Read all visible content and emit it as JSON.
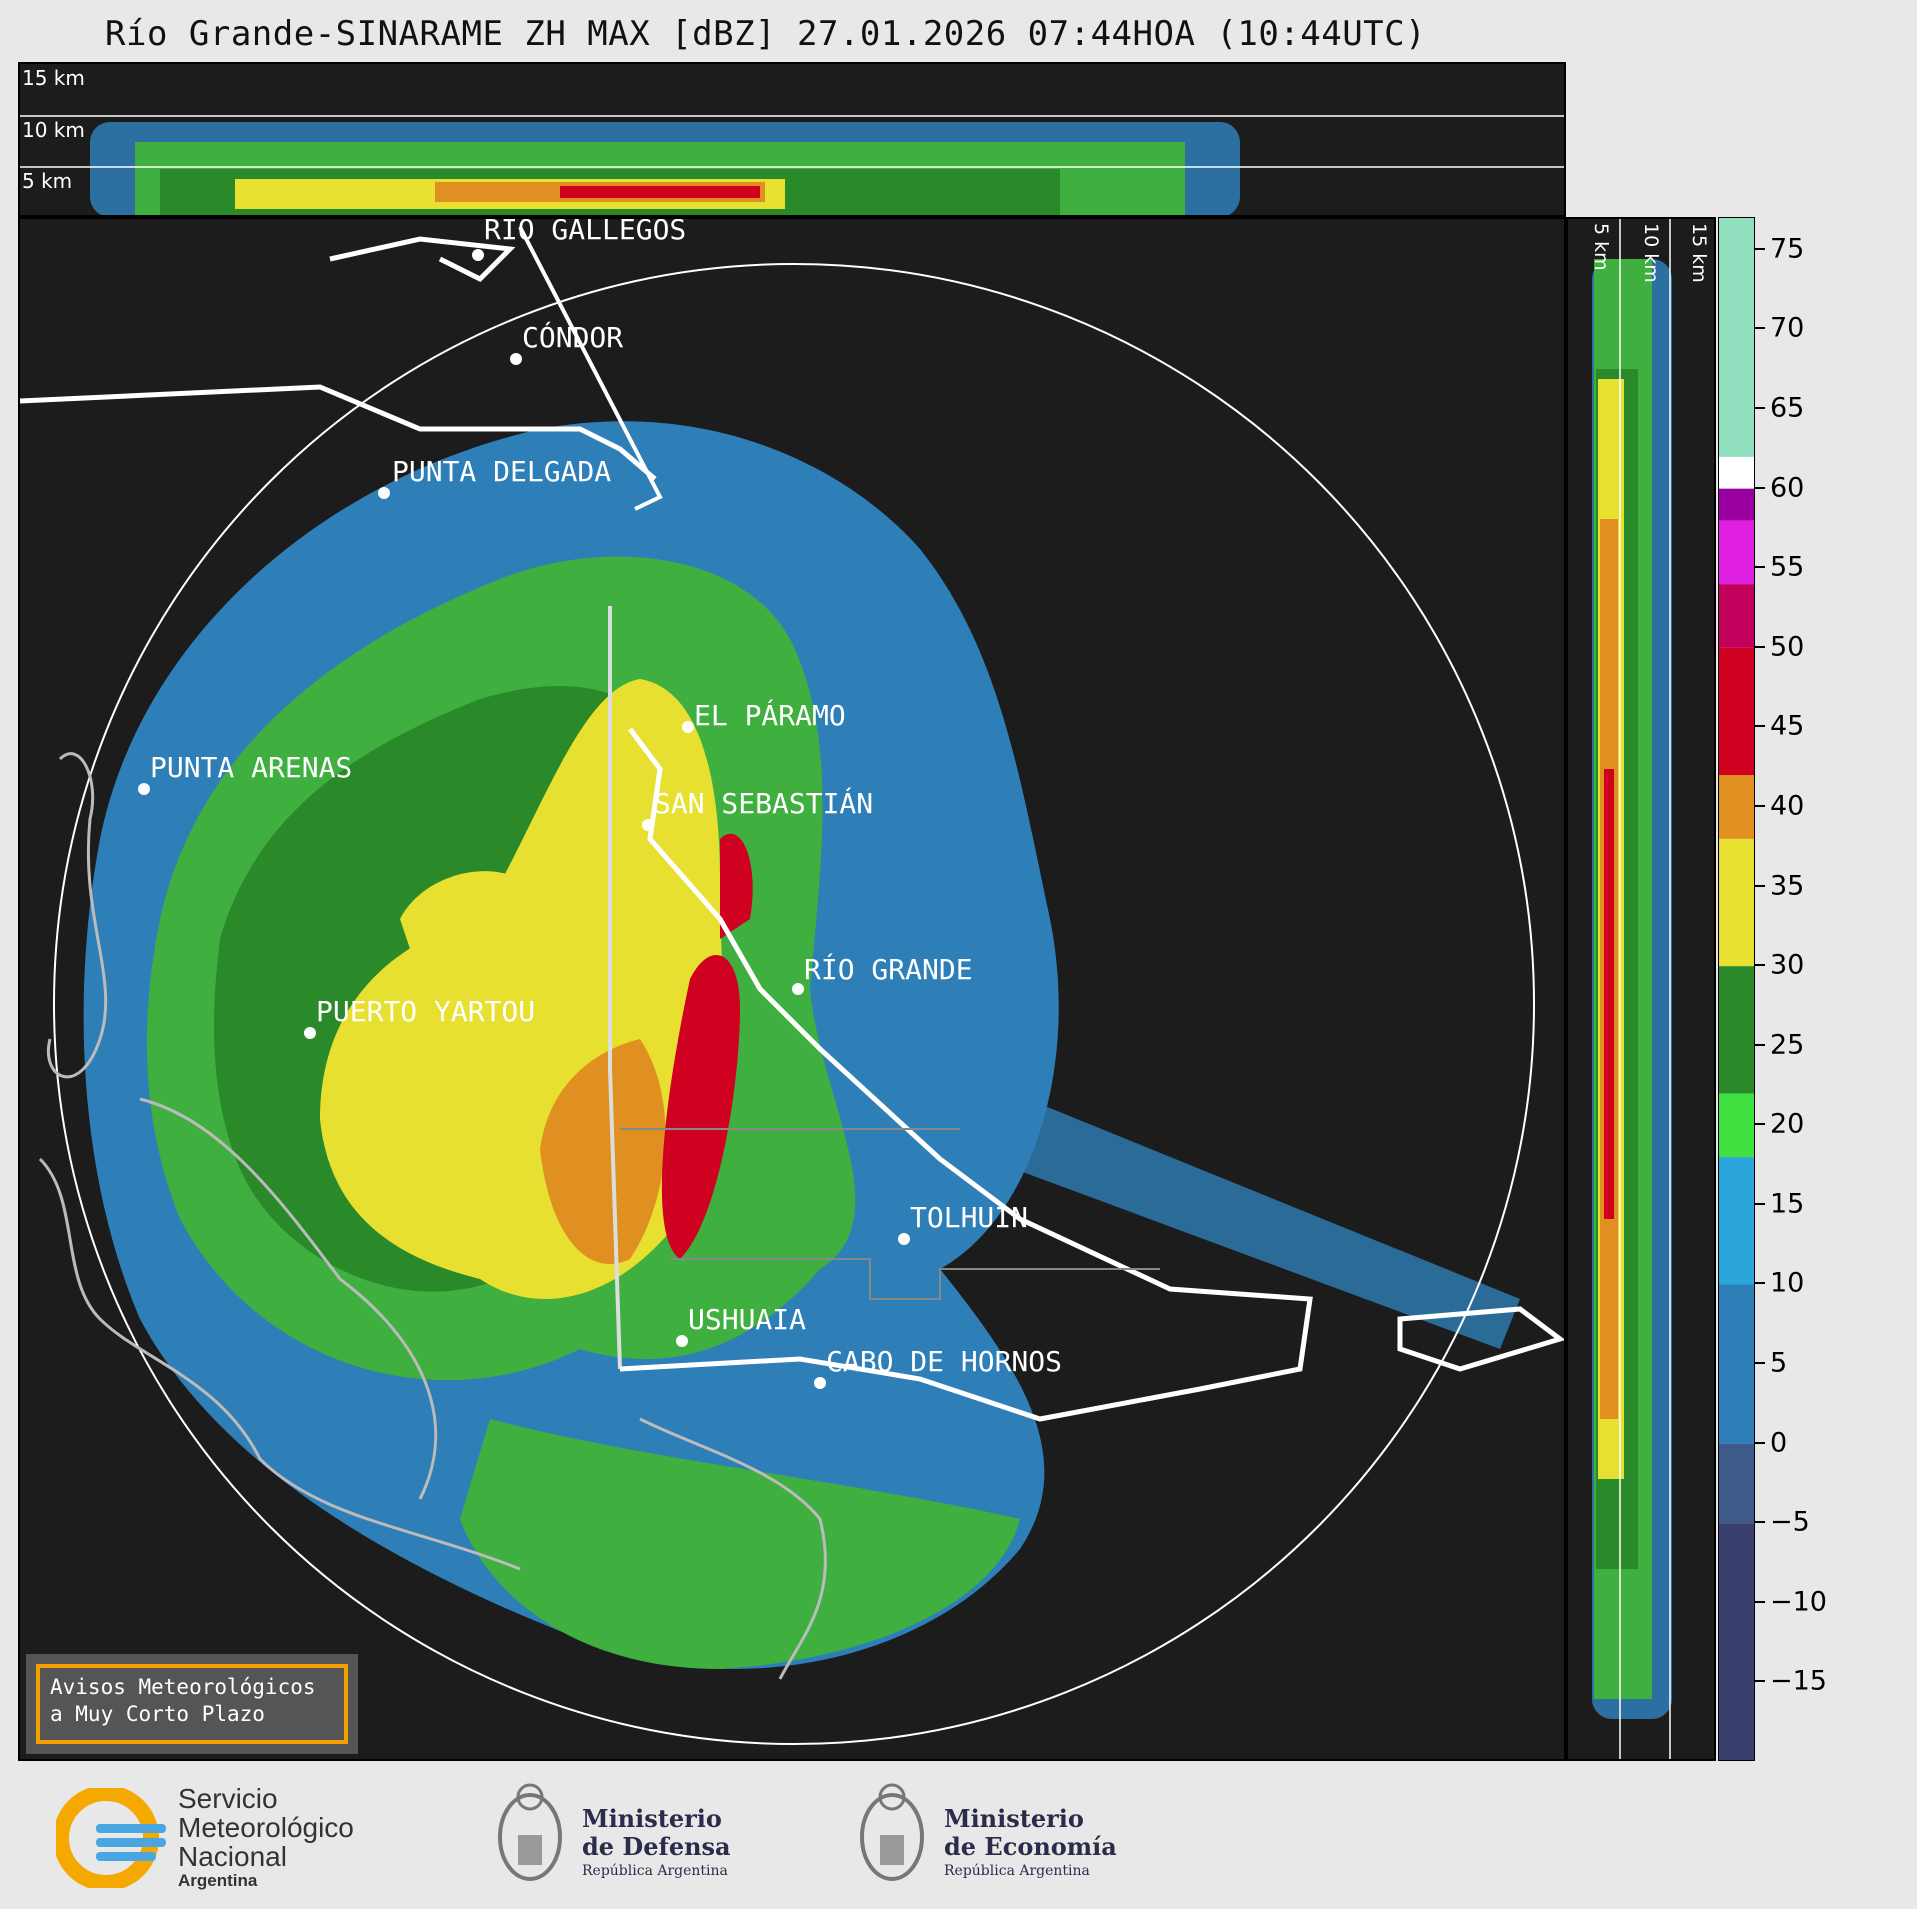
{
  "title": "Río Grande-SINARAME ZH MAX [dBZ] 27.01.2026 07:44HOA (10:44UTC)",
  "height_labels": [
    "15 km",
    "10 km",
    "5 km"
  ],
  "side_labels": [
    "5 km",
    "10 km",
    "15 km"
  ],
  "cities": [
    {
      "name": "RÍO GALLEGOS"
    },
    {
      "name": "CÓNDOR"
    },
    {
      "name": "PUNTA DELGADA"
    },
    {
      "name": "EL PÁRAMO"
    },
    {
      "name": "PUNTA ARENAS"
    },
    {
      "name": "SAN SEBASTIÁN"
    },
    {
      "name": "RÍO GRANDE"
    },
    {
      "name": "PUERTO YARTOU"
    },
    {
      "name": "TOLHUIN"
    },
    {
      "name": "USHUAIA"
    },
    {
      "name": "CABO DE HORNOS"
    }
  ],
  "colorbar": {
    "unit": "dBZ",
    "min": -20,
    "max": 77,
    "ticks": [
      "75",
      "70",
      "65",
      "60",
      "55",
      "50",
      "45",
      "40",
      "35",
      "30",
      "25",
      "20",
      "15",
      "10",
      "5",
      "0",
      "−5",
      "−10",
      "−15"
    ],
    "tick_values": [
      75,
      70,
      65,
      60,
      55,
      50,
      45,
      40,
      35,
      30,
      25,
      20,
      15,
      10,
      5,
      0,
      -5,
      -10,
      -15
    ],
    "bands": [
      {
        "from": -20,
        "to": -5,
        "color": "#3a3f6e"
      },
      {
        "from": -5,
        "to": 0,
        "color": "#3d5a8a"
      },
      {
        "from": 0,
        "to": 10,
        "color": "#2e7fb8"
      },
      {
        "from": 10,
        "to": 18,
        "color": "#2aa6dc"
      },
      {
        "from": 18,
        "to": 22,
        "color": "#3fe040"
      },
      {
        "from": 22,
        "to": 30,
        "color": "#2a8a2a"
      },
      {
        "from": 30,
        "to": 38,
        "color": "#e8e030"
      },
      {
        "from": 38,
        "to": 42,
        "color": "#e09020"
      },
      {
        "from": 42,
        "to": 50,
        "color": "#d00020"
      },
      {
        "from": 50,
        "to": 54,
        "color": "#c0005a"
      },
      {
        "from": 54,
        "to": 58,
        "color": "#e020e0"
      },
      {
        "from": 58,
        "to": 60,
        "color": "#9a00a0"
      },
      {
        "from": 60,
        "to": 62,
        "color": "#ffffff"
      },
      {
        "from": 62,
        "to": 77,
        "color": "#90e0c0"
      }
    ]
  },
  "warning_box": {
    "line1": "Avisos Meteorológicos",
    "line2": "a Muy Corto Plazo"
  },
  "logos": {
    "smn": {
      "line1": "Servicio",
      "line2": "Meteorológico",
      "line3": "Nacional",
      "line4": "Argentina"
    },
    "defensa": {
      "line1": "Ministerio",
      "line2": "de Defensa",
      "line3": "República Argentina"
    },
    "economia": {
      "line1": "Ministerio",
      "line2": "de Economía",
      "line3": "República Argentina"
    }
  }
}
